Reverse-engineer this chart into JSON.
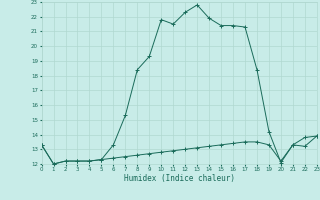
{
  "xlabel": "Humidex (Indice chaleur)",
  "xlim": [
    0,
    23
  ],
  "ylim": [
    12,
    23
  ],
  "yticks": [
    12,
    13,
    14,
    15,
    16,
    17,
    18,
    19,
    20,
    21,
    22,
    23
  ],
  "xticks": [
    0,
    1,
    2,
    3,
    4,
    5,
    6,
    7,
    8,
    9,
    10,
    11,
    12,
    13,
    14,
    15,
    16,
    17,
    18,
    19,
    20,
    21,
    22,
    23
  ],
  "bg_color": "#c8ece8",
  "line_color": "#1a6b5a",
  "grid_color": "#b0d8d0",
  "curve1_x": [
    0,
    1,
    2,
    3,
    4,
    5,
    6,
    7,
    8,
    9,
    10,
    11,
    12,
    13,
    14,
    15,
    16,
    17,
    18,
    19,
    20,
    21,
    22,
    23
  ],
  "curve1_y": [
    13.3,
    12.0,
    12.2,
    12.2,
    12.2,
    12.3,
    13.3,
    15.3,
    18.4,
    19.3,
    21.8,
    21.5,
    22.3,
    22.8,
    21.9,
    21.4,
    21.4,
    21.3,
    18.4,
    14.2,
    12.1,
    13.3,
    13.8,
    13.9
  ],
  "curve2_x": [
    0,
    1,
    2,
    3,
    4,
    5,
    6,
    7,
    8,
    9,
    10,
    11,
    12,
    13,
    14,
    15,
    16,
    17,
    18,
    19,
    20,
    21,
    22,
    23
  ],
  "curve2_y": [
    13.3,
    12.0,
    12.2,
    12.2,
    12.2,
    12.3,
    12.4,
    12.5,
    12.6,
    12.7,
    12.8,
    12.9,
    13.0,
    13.1,
    13.2,
    13.3,
    13.4,
    13.5,
    13.5,
    13.3,
    12.2,
    13.3,
    13.2,
    13.9
  ]
}
